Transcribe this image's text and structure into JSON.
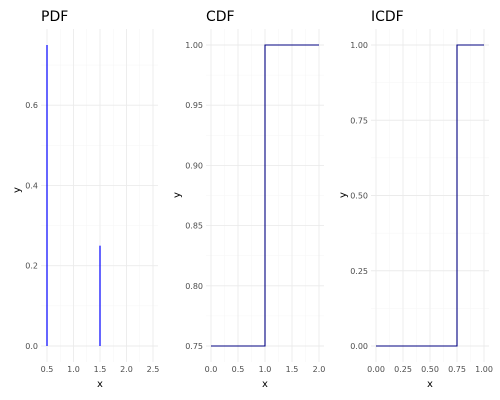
{
  "chart_data": [
    {
      "type": "line",
      "subtype": "spikes",
      "title": "PDF",
      "xlabel": "x",
      "ylabel": "y",
      "xlim": [
        0.45,
        2.55
      ],
      "ylim": [
        0,
        0.75
      ],
      "xticks": [
        "0.5",
        "1.0",
        "1.5",
        "2.0",
        "2.5"
      ],
      "xtick_values": [
        0.5,
        1.0,
        1.5,
        2.0,
        2.5
      ],
      "yticks": [
        "0.0",
        "0.2",
        "0.4",
        "0.6"
      ],
      "ytick_values": [
        0.0,
        0.2,
        0.4,
        0.6
      ],
      "grid": true,
      "series": [
        {
          "color": "#0000ff",
          "x": [
            0.5,
            1.5
          ],
          "y": [
            0.75,
            0.25
          ]
        }
      ]
    },
    {
      "type": "line",
      "subtype": "step",
      "title": "CDF",
      "xlabel": "x",
      "ylabel": "y",
      "xlim": [
        0,
        2
      ],
      "ylim": [
        0.75,
        1.0
      ],
      "xticks": [
        "0.0",
        "0.5",
        "1.0",
        "1.5",
        "2.0"
      ],
      "xtick_values": [
        0.0,
        0.5,
        1.0,
        1.5,
        2.0
      ],
      "yticks": [
        "0.75",
        "0.80",
        "0.85",
        "0.90",
        "0.95",
        "1.00"
      ],
      "ytick_values": [
        0.75,
        0.8,
        0.85,
        0.9,
        0.95,
        1.0
      ],
      "grid": true,
      "series": [
        {
          "color": "#000080",
          "x": [
            0,
            1,
            1,
            2
          ],
          "y": [
            0.75,
            0.75,
            1.0,
            1.0
          ]
        }
      ]
    },
    {
      "type": "line",
      "subtype": "step",
      "title": "ICDF",
      "xlabel": "x",
      "ylabel": "y",
      "xlim": [
        0,
        1
      ],
      "ylim": [
        0,
        1
      ],
      "xticks": [
        "0.00",
        "0.25",
        "0.50",
        "0.75",
        "1.00"
      ],
      "xtick_values": [
        0.0,
        0.25,
        0.5,
        0.75,
        1.0
      ],
      "yticks": [
        "0.00",
        "0.25",
        "0.50",
        "0.75",
        "1.00"
      ],
      "ytick_values": [
        0.0,
        0.25,
        0.5,
        0.75,
        1.0
      ],
      "grid": true,
      "series": [
        {
          "color": "#000080",
          "x": [
            0,
            0.75,
            0.75,
            1
          ],
          "y": [
            0.0,
            0.0,
            1.0,
            1.0
          ]
        }
      ]
    }
  ],
  "colors": {
    "panel_background": "#ffffff",
    "grid_major": "#ebebeb",
    "grid_minor": "#f5f5f5",
    "tick_text": "#4d4d4d"
  }
}
